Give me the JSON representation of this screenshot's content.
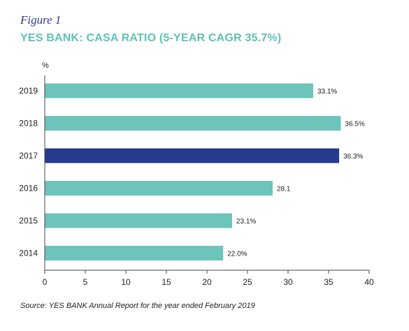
{
  "figure_label": "Figure 1",
  "source_note": "Source: YES BANK Annual Report for the year ended February 2019",
  "colors": {
    "bar": "#6cc4bb",
    "highlight": "#263a8e",
    "title": "#5fc1b6",
    "figure_label": "#2b3a8c"
  },
  "chart_data": {
    "type": "bar",
    "orientation": "horizontal",
    "title": "YES BANK: CASA RATIO (5-YEAR CAGR 35.7%)",
    "unit": "%",
    "categories": [
      "2019",
      "2018",
      "2017",
      "2016",
      "2015",
      "2014"
    ],
    "values": [
      33.1,
      36.5,
      36.3,
      28.1,
      23.1,
      22.0
    ],
    "data_labels": [
      "33.1%",
      "36.5%",
      "36.3%",
      "28.1",
      "23.1%",
      "22.0%"
    ],
    "highlight_category": "2017",
    "xlim": [
      0,
      40
    ],
    "xticks": [
      0,
      5,
      10,
      15,
      20,
      25,
      30,
      35,
      40
    ],
    "grid": false
  }
}
